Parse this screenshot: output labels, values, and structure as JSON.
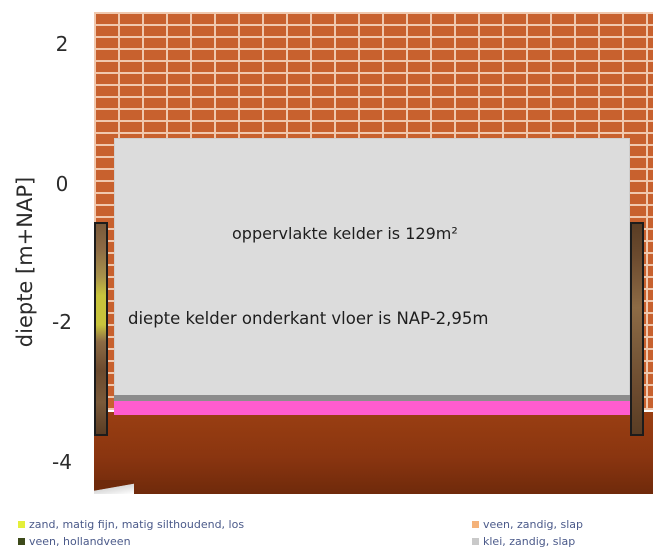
{
  "axis": {
    "ylabel": "diepte [m+NAP]",
    "ticks": [
      "2",
      "0",
      "-2",
      "-4"
    ]
  },
  "annotations": {
    "area_text": "oppervlakte kelder is 129m²",
    "depth_text": "diepte kelder onderkant vloer is NAP-2,95m"
  },
  "legend": {
    "items": [
      {
        "label": "zand, matig fijn, matig silthoudend, los",
        "color": "#e4ef3a"
      },
      {
        "label": "veen, hollandveen",
        "color": "#3d4a1a"
      },
      {
        "label": "veen, zandig, slap",
        "color": "#f4b27a"
      },
      {
        "label": "klei, zandig, slap",
        "color": "#c9c9c9"
      }
    ]
  },
  "colors": {
    "brick": "#c8612e",
    "basement": "#dcdcdc",
    "floor_slab": "#ff5ccf",
    "soil": "#8a3510"
  }
}
